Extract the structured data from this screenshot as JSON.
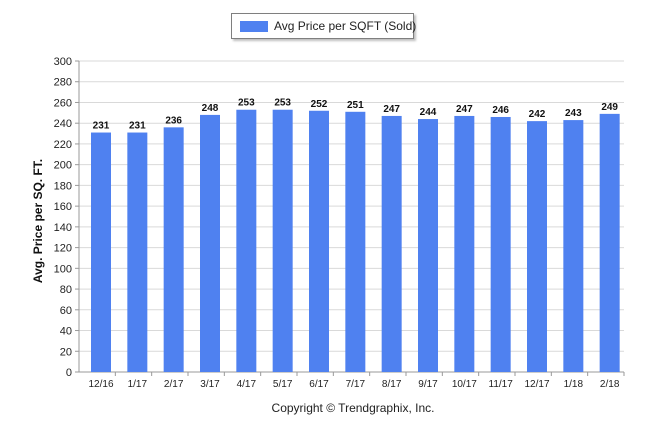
{
  "chart_data": {
    "type": "bar",
    "title": "",
    "xlabel": "",
    "ylabel": "Avg. Price per SQ. FT.",
    "categories": [
      "12/16",
      "1/17",
      "2/17",
      "3/17",
      "4/17",
      "5/17",
      "6/17",
      "7/17",
      "8/17",
      "9/17",
      "10/17",
      "11/17",
      "12/17",
      "1/18",
      "2/18"
    ],
    "series": [
      {
        "name": "Avg Price per SQFT (Sold)",
        "values": [
          231,
          231,
          236,
          248,
          253,
          253,
          252,
          251,
          247,
          244,
          247,
          246,
          242,
          243,
          249
        ]
      }
    ],
    "ylim": [
      0,
      300
    ],
    "yticks": [
      0,
      20,
      40,
      60,
      80,
      100,
      120,
      140,
      160,
      180,
      200,
      220,
      240,
      260,
      280,
      300
    ],
    "grid": true,
    "legend_position": "top-center",
    "data_labels": true,
    "colors": {
      "bar": "#4f81f0",
      "grid": "#d9d9d9",
      "axis": "#999999"
    }
  },
  "footer": {
    "copyright": "Copyright © Trendgraphix, Inc."
  }
}
